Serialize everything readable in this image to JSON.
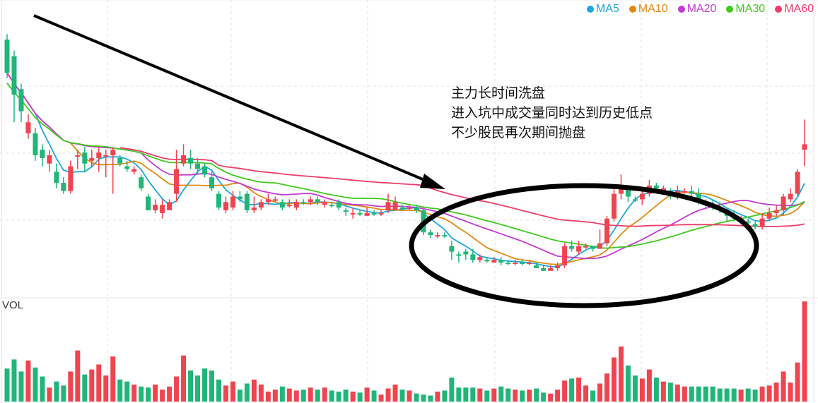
{
  "legend": [
    {
      "label": "MA5",
      "color": "#1ba7e0"
    },
    {
      "label": "MA10",
      "color": "#e08a13"
    },
    {
      "label": "MA20",
      "color": "#c23bd0"
    },
    {
      "label": "MA30",
      "color": "#3fc91d"
    },
    {
      "label": "MA60",
      "color": "#ee3d6b"
    }
  ],
  "annotation": {
    "line1": "主力长时间洗盘",
    "line2": "进入坑中成交量同时达到历史低点",
    "line3": "不少股民再次期间抛盘"
  },
  "volume_label": "VOL",
  "colors": {
    "up": "#f0444f",
    "down": "#1fb678",
    "grid": "#e2e2e2",
    "arrow": "#000000"
  },
  "chart_data": {
    "type": "candlestick",
    "title": "",
    "panels": [
      "price",
      "volume"
    ],
    "legend": [
      "MA5",
      "MA10",
      "MA20",
      "MA30",
      "MA60"
    ],
    "xlabel": "",
    "ylabel": "",
    "grid": true,
    "note": "Price axis unlabeled; values are relative pixel-derived levels (0=bottom,100=top of price panel). Volume relative 0-100.",
    "candles": [
      [
        92,
        80,
        94,
        78,
        "d",
        33
      ],
      [
        86,
        72,
        88,
        62,
        "d",
        42
      ],
      [
        74,
        66,
        76,
        62,
        "d",
        30
      ],
      [
        62,
        58,
        65,
        56,
        "u",
        41
      ],
      [
        58,
        50,
        60,
        48,
        "d",
        34
      ],
      [
        52,
        49,
        54,
        46,
        "d",
        25
      ],
      [
        50,
        47,
        52,
        44,
        "u",
        14
      ],
      [
        44,
        40,
        47,
        38,
        "d",
        20
      ],
      [
        40,
        37,
        42,
        36,
        "d",
        16
      ],
      [
        37,
        46,
        48,
        36,
        "u",
        30
      ],
      [
        50,
        50,
        52,
        45,
        "u",
        51
      ],
      [
        51,
        47,
        53,
        44,
        "d",
        27
      ],
      [
        48,
        49,
        52,
        46,
        "u",
        32
      ],
      [
        49,
        51,
        53,
        44,
        "u",
        37
      ],
      [
        50,
        50,
        52,
        42,
        "u",
        26
      ],
      [
        52,
        50,
        53,
        36,
        "u",
        45
      ],
      [
        49,
        47,
        50,
        46,
        "d",
        22
      ],
      [
        46,
        45,
        48,
        44,
        "d",
        20
      ],
      [
        45,
        44,
        46,
        43,
        "u",
        17
      ],
      [
        42,
        38,
        43,
        37,
        "d",
        15
      ],
      [
        35,
        30,
        36,
        30,
        "d",
        14
      ],
      [
        32,
        30,
        34,
        29,
        "u",
        17
      ],
      [
        32,
        29,
        34,
        27,
        "u",
        12
      ],
      [
        30,
        33,
        34,
        30,
        "u",
        15
      ],
      [
        36,
        45,
        52,
        33,
        "u",
        25
      ],
      [
        47,
        50,
        54,
        46,
        "u",
        46
      ],
      [
        49,
        47,
        52,
        45,
        "d",
        31
      ],
      [
        47,
        45,
        49,
        43,
        "d",
        26
      ],
      [
        46,
        43,
        47,
        42,
        "d",
        33
      ],
      [
        42,
        38,
        44,
        37,
        "d",
        31
      ],
      [
        36,
        31,
        37,
        30,
        "d",
        22
      ],
      [
        33,
        30,
        35,
        29,
        "u",
        16
      ],
      [
        31,
        35,
        37,
        30,
        "u",
        20
      ],
      [
        34,
        35,
        37,
        33,
        "d",
        12
      ],
      [
        36,
        30,
        37,
        29,
        "d",
        18
      ],
      [
        31,
        30,
        35,
        29,
        "u",
        22
      ],
      [
        31,
        33,
        34,
        30,
        "u",
        17
      ],
      [
        33,
        34,
        36,
        32,
        "u",
        10
      ],
      [
        34,
        34,
        35,
        33,
        "u",
        12
      ],
      [
        33,
        31,
        34,
        30,
        "d",
        15
      ],
      [
        32,
        32,
        34,
        31,
        "u",
        13
      ],
      [
        31,
        33,
        34,
        30,
        "u",
        11
      ],
      [
        33,
        33,
        34,
        32,
        "d",
        12
      ],
      [
        33,
        34,
        35,
        32,
        "u",
        14
      ],
      [
        34,
        33,
        35,
        32,
        "d",
        12
      ],
      [
        33,
        32,
        34,
        31,
        "u",
        14
      ],
      [
        32,
        32,
        33,
        31,
        "d",
        11
      ],
      [
        33,
        31,
        34,
        30,
        "d",
        10
      ],
      [
        30,
        30,
        31,
        28,
        "d",
        12
      ],
      [
        29,
        29,
        31,
        27,
        "u",
        10
      ],
      [
        29,
        29,
        30,
        28,
        "d",
        9
      ],
      [
        28,
        29,
        31,
        28,
        "u",
        14
      ],
      [
        29,
        29,
        30,
        28,
        "d",
        11
      ],
      [
        29,
        29,
        30,
        28,
        "u",
        7
      ],
      [
        30,
        33,
        36,
        29,
        "u",
        13
      ],
      [
        33,
        30,
        35,
        30,
        "u",
        17
      ],
      [
        31,
        31,
        32,
        30,
        "d",
        12
      ],
      [
        31,
        31,
        32,
        30,
        "u",
        11
      ],
      [
        31,
        30,
        32,
        29,
        "d",
        8
      ],
      [
        30,
        22,
        31,
        21,
        "d",
        7
      ],
      [
        22,
        21,
        23,
        20,
        "d",
        6
      ],
      [
        21,
        21,
        22,
        20,
        "u",
        10
      ],
      [
        21,
        21,
        22,
        20,
        "d",
        11
      ],
      [
        17,
        15,
        19,
        12,
        "d",
        24
      ],
      [
        14,
        14,
        15,
        11,
        "d",
        14
      ],
      [
        15,
        14,
        16,
        12,
        "d",
        14
      ],
      [
        14,
        12,
        16,
        11,
        "d",
        14
      ],
      [
        13,
        12,
        14,
        11,
        "u",
        13
      ],
      [
        12,
        12,
        13,
        11,
        "d",
        11
      ],
      [
        11,
        12,
        13,
        11,
        "u",
        13
      ],
      [
        12,
        11,
        13,
        10,
        "d",
        15
      ],
      [
        11,
        11,
        12,
        10,
        "d",
        13
      ],
      [
        11,
        11,
        12,
        10,
        "u",
        12
      ],
      [
        11,
        11,
        12,
        10,
        "d",
        11
      ],
      [
        11,
        11,
        12,
        10,
        "u",
        12
      ],
      [
        10,
        9,
        11,
        9,
        "d",
        13
      ],
      [
        9,
        8,
        10,
        8,
        "d",
        9
      ],
      [
        8,
        9,
        10,
        8,
        "u",
        8
      ],
      [
        9,
        10,
        11,
        8,
        "u",
        12
      ],
      [
        10,
        17,
        18,
        9,
        "u",
        21
      ],
      [
        16,
        17,
        19,
        15,
        "d",
        23
      ],
      [
        15,
        17,
        19,
        14,
        "u",
        24
      ],
      [
        17,
        17,
        18,
        16,
        "u",
        16
      ],
      [
        17,
        16,
        17,
        15,
        "d",
        11
      ],
      [
        16,
        18,
        23,
        16,
        "u",
        18
      ],
      [
        18,
        27,
        28,
        17,
        "u",
        28
      ],
      [
        27,
        36,
        38,
        26,
        "u",
        44
      ],
      [
        36,
        38,
        43,
        34,
        "u",
        55
      ],
      [
        38,
        35,
        38,
        33,
        "d",
        36
      ],
      [
        34,
        34,
        35,
        33,
        "d",
        26
      ],
      [
        34,
        36,
        38,
        32,
        "u",
        23
      ],
      [
        36,
        39,
        41,
        35,
        "u",
        32
      ],
      [
        39,
        38,
        40,
        37,
        "d",
        24
      ],
      [
        38,
        37,
        39,
        36,
        "u",
        20
      ],
      [
        37,
        35,
        38,
        34,
        "d",
        19
      ],
      [
        35,
        37,
        39,
        34,
        "u",
        17
      ],
      [
        37,
        37,
        38,
        36,
        "u",
        15
      ],
      [
        37,
        36,
        39,
        35,
        "d",
        15
      ],
      [
        36,
        33,
        38,
        32,
        "d",
        15
      ],
      [
        33,
        32,
        34,
        31,
        "d",
        15
      ],
      [
        32,
        31,
        34,
        30,
        "d",
        15
      ],
      [
        31,
        30,
        33,
        29,
        "d",
        13
      ],
      [
        30,
        28,
        31,
        26,
        "d",
        13
      ],
      [
        28,
        27,
        30,
        26,
        "d",
        13
      ],
      [
        27,
        26,
        28,
        25,
        "u",
        12
      ],
      [
        26,
        26,
        27,
        25,
        "d",
        13
      ],
      [
        25,
        24,
        26,
        23,
        "d",
        12
      ],
      [
        24,
        27,
        29,
        23,
        "u",
        15
      ],
      [
        27,
        29,
        31,
        26,
        "u",
        16
      ],
      [
        29,
        30,
        32,
        28,
        "u",
        19
      ],
      [
        30,
        35,
        36,
        28,
        "u",
        30
      ],
      [
        34,
        36,
        38,
        33,
        "u",
        19
      ],
      [
        36,
        44,
        45,
        35,
        "u",
        39
      ],
      [
        52,
        54,
        63,
        46,
        "u",
        100
      ]
    ]
  }
}
